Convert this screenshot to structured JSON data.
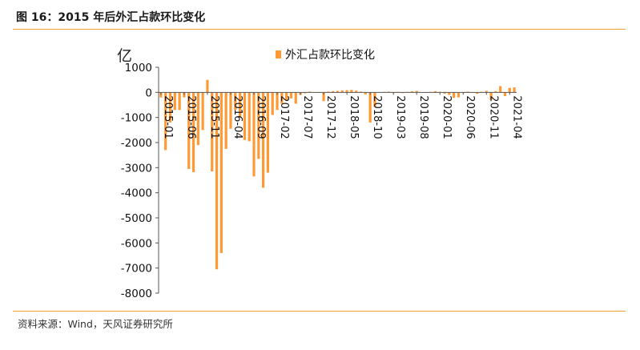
{
  "figure": {
    "title": "图 16：2015 年后外汇占款环比变化",
    "source": "资料来源：Wind，天风证券研究所",
    "accent_color": "#f2a030",
    "bar_color": "#ff9933"
  },
  "chart_data": {
    "type": "bar",
    "unit_label": "亿",
    "legend": "外汇占款环比变化",
    "legend_position": "top-center",
    "ylim": [
      -8000,
      1000
    ],
    "yticks": [
      1000,
      0,
      -1000,
      -2000,
      -3000,
      -4000,
      -5000,
      -6000,
      -7000,
      -8000
    ],
    "ytick_labels": [
      "1000",
      "0",
      "-1000",
      "-2000",
      "-3000",
      "-4000",
      "-5000",
      "-6000",
      "-7000",
      "-8000"
    ],
    "xtick_labels": [
      "2015-01",
      "2015-06",
      "2015-11",
      "2016-04",
      "2016-09",
      "2017-02",
      "2017-07",
      "2017-12",
      "2018-05",
      "2018-10",
      "2019-03",
      "2019-08",
      "2020-01",
      "2020-06",
      "2020-11",
      "2021-04"
    ],
    "grid": false,
    "categories": [
      "2015-01",
      "2015-02",
      "2015-03",
      "2015-04",
      "2015-05",
      "2015-06",
      "2015-07",
      "2015-08",
      "2015-09",
      "2015-10",
      "2015-11",
      "2015-12",
      "2016-01",
      "2016-02",
      "2016-03",
      "2016-04",
      "2016-05",
      "2016-06",
      "2016-07",
      "2016-08",
      "2016-09",
      "2016-10",
      "2016-11",
      "2016-12",
      "2017-01",
      "2017-02",
      "2017-03",
      "2017-04",
      "2017-05",
      "2017-06",
      "2017-07",
      "2017-08",
      "2017-09",
      "2017-10",
      "2017-11",
      "2017-12",
      "2018-01",
      "2018-02",
      "2018-03",
      "2018-04",
      "2018-05",
      "2018-06",
      "2018-07",
      "2018-08",
      "2018-09",
      "2018-10",
      "2018-11",
      "2018-12",
      "2019-01",
      "2019-02",
      "2019-03",
      "2019-04",
      "2019-05",
      "2019-06",
      "2019-07",
      "2019-08",
      "2019-09",
      "2019-10",
      "2019-11",
      "2019-12",
      "2020-01",
      "2020-02",
      "2020-03",
      "2020-04",
      "2020-05",
      "2020-06",
      "2020-07",
      "2020-08",
      "2020-09",
      "2020-10",
      "2020-11",
      "2020-12",
      "2021-01",
      "2021-02",
      "2021-03",
      "2021-04",
      "2021-05"
    ],
    "values": [
      -200,
      -2300,
      -1200,
      -700,
      -700,
      -200,
      -3050,
      -3180,
      -2100,
      -1500,
      500,
      -3150,
      -7050,
      -6400,
      -2250,
      -1450,
      -700,
      -1000,
      -1900,
      -1950,
      -3350,
      -2650,
      -3800,
      -3200,
      -900,
      -700,
      -450,
      -300,
      -240,
      -450,
      -100,
      -40,
      30,
      10,
      0,
      -350,
      30,
      50,
      60,
      80,
      90,
      100,
      70,
      30,
      -80,
      -1200,
      -580,
      10,
      20,
      30,
      -30,
      20,
      -30,
      20,
      40,
      60,
      10,
      -20,
      20,
      50,
      20,
      -50,
      -100,
      -220,
      -200,
      -30,
      30,
      0,
      -60,
      20,
      60,
      -300,
      50,
      250,
      -150,
      180,
      200
    ]
  }
}
